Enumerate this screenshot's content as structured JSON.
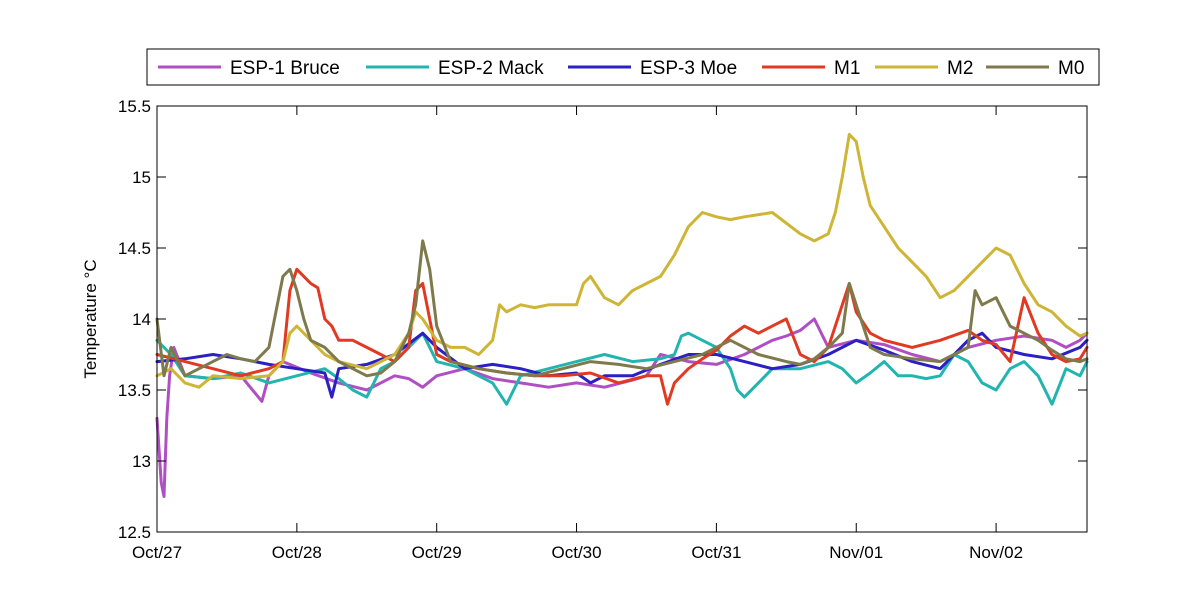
{
  "chart_data": {
    "type": "line",
    "title": "",
    "xlabel": "",
    "ylabel": "Temperature °C",
    "ylim": [
      12.5,
      15.5
    ],
    "xlim": [
      0,
      6.65
    ],
    "grid": false,
    "legend_placement": "top",
    "x_tick_labels": [
      "Oct/27",
      "Oct/28",
      "Oct/29",
      "Oct/30",
      "Oct/31",
      "Nov/01",
      "Nov/02"
    ],
    "x_tick_values": [
      0,
      1,
      2,
      3,
      4,
      5,
      6
    ],
    "y_tick_labels": [
      "12.5",
      "13",
      "13.5",
      "14",
      "14.5",
      "15",
      "15.5"
    ],
    "y_tick_values": [
      12.5,
      13,
      13.5,
      14,
      14.5,
      15,
      15.5
    ],
    "series": [
      {
        "name": "ESP-1 Bruce",
        "color": "#b04fc4",
        "x": [
          0,
          0.03,
          0.05,
          0.07,
          0.09,
          0.12,
          0.2,
          0.4,
          0.6,
          0.75,
          0.8,
          0.9,
          1.1,
          1.3,
          1.5,
          1.7,
          1.8,
          1.9,
          2.0,
          2.2,
          2.4,
          2.6,
          2.8,
          3.0,
          3.2,
          3.4,
          3.5,
          3.6,
          3.8,
          4.0,
          4.2,
          4.4,
          4.5,
          4.6,
          4.7,
          4.8,
          5.0,
          5.2,
          5.4,
          5.6,
          5.8,
          6.0,
          6.2,
          6.4,
          6.5,
          6.6,
          6.65
        ],
        "y": [
          13.3,
          12.85,
          12.75,
          13.3,
          13.6,
          13.8,
          13.6,
          13.58,
          13.6,
          13.42,
          13.6,
          13.7,
          13.62,
          13.55,
          13.5,
          13.6,
          13.58,
          13.52,
          13.6,
          13.65,
          13.58,
          13.55,
          13.52,
          13.55,
          13.52,
          13.57,
          13.6,
          13.75,
          13.7,
          13.68,
          13.75,
          13.85,
          13.88,
          13.92,
          14.0,
          13.8,
          13.85,
          13.82,
          13.75,
          13.7,
          13.8,
          13.85,
          13.88,
          13.85,
          13.8,
          13.85,
          13.9
        ]
      },
      {
        "name": "ESP-2 Mack",
        "color": "#22b5b0",
        "x": [
          0,
          0.1,
          0.2,
          0.4,
          0.6,
          0.8,
          1.0,
          1.2,
          1.3,
          1.4,
          1.5,
          1.6,
          1.7,
          1.8,
          1.9,
          2.0,
          2.2,
          2.4,
          2.5,
          2.6,
          2.8,
          3.0,
          3.2,
          3.4,
          3.6,
          3.7,
          3.75,
          3.8,
          3.9,
          4.0,
          4.1,
          4.15,
          4.2,
          4.3,
          4.4,
          4.6,
          4.8,
          4.9,
          5.0,
          5.1,
          5.2,
          5.3,
          5.4,
          5.5,
          5.6,
          5.7,
          5.8,
          5.9,
          6.0,
          6.1,
          6.2,
          6.3,
          6.4,
          6.5,
          6.6,
          6.65
        ],
        "y": [
          13.85,
          13.75,
          13.6,
          13.58,
          13.62,
          13.55,
          13.6,
          13.65,
          13.58,
          13.5,
          13.45,
          13.65,
          13.7,
          13.8,
          13.9,
          13.7,
          13.65,
          13.55,
          13.4,
          13.6,
          13.65,
          13.7,
          13.75,
          13.7,
          13.72,
          13.75,
          13.88,
          13.9,
          13.85,
          13.8,
          13.65,
          13.5,
          13.45,
          13.55,
          13.65,
          13.65,
          13.7,
          13.65,
          13.55,
          13.62,
          13.7,
          13.6,
          13.6,
          13.58,
          13.6,
          13.75,
          13.7,
          13.55,
          13.5,
          13.65,
          13.7,
          13.6,
          13.4,
          13.65,
          13.6,
          13.7
        ]
      },
      {
        "name": "ESP-3 Moe",
        "color": "#2c1fc4",
        "x": [
          0,
          0.2,
          0.4,
          0.6,
          0.8,
          1.0,
          1.2,
          1.25,
          1.3,
          1.5,
          1.7,
          1.9,
          2.0,
          2.2,
          2.4,
          2.6,
          2.8,
          3.0,
          3.1,
          3.2,
          3.4,
          3.6,
          3.8,
          4.0,
          4.2,
          4.4,
          4.6,
          4.8,
          5.0,
          5.2,
          5.4,
          5.6,
          5.8,
          5.9,
          6.0,
          6.2,
          6.4,
          6.6,
          6.65
        ],
        "y": [
          13.7,
          13.72,
          13.75,
          13.72,
          13.68,
          13.65,
          13.62,
          13.45,
          13.65,
          13.68,
          13.75,
          13.9,
          13.8,
          13.65,
          13.68,
          13.65,
          13.6,
          13.62,
          13.55,
          13.6,
          13.6,
          13.68,
          13.75,
          13.75,
          13.7,
          13.65,
          13.68,
          13.75,
          13.85,
          13.78,
          13.7,
          13.65,
          13.85,
          13.9,
          13.8,
          13.75,
          13.72,
          13.8,
          13.85
        ]
      },
      {
        "name": "M1",
        "color": "#e03a22",
        "x": [
          0,
          0.2,
          0.4,
          0.6,
          0.8,
          0.9,
          0.95,
          1.0,
          1.05,
          1.1,
          1.15,
          1.2,
          1.25,
          1.3,
          1.4,
          1.5,
          1.6,
          1.7,
          1.8,
          1.85,
          1.9,
          1.95,
          2.0,
          2.1,
          2.3,
          2.5,
          2.7,
          2.9,
          3.1,
          3.3,
          3.5,
          3.6,
          3.65,
          3.7,
          3.8,
          3.9,
          4.0,
          4.1,
          4.2,
          4.3,
          4.4,
          4.5,
          4.6,
          4.7,
          4.8,
          4.9,
          4.95,
          5.0,
          5.1,
          5.2,
          5.4,
          5.6,
          5.8,
          5.9,
          6.0,
          6.1,
          6.2,
          6.3,
          6.4,
          6.5,
          6.6,
          6.65
        ],
        "y": [
          13.75,
          13.7,
          13.65,
          13.6,
          13.65,
          13.7,
          14.2,
          14.35,
          14.3,
          14.25,
          14.22,
          14.0,
          13.95,
          13.85,
          13.85,
          13.8,
          13.75,
          13.7,
          13.8,
          14.2,
          14.25,
          14.0,
          13.75,
          13.7,
          13.65,
          13.62,
          13.6,
          13.6,
          13.62,
          13.55,
          13.6,
          13.6,
          13.4,
          13.55,
          13.65,
          13.72,
          13.78,
          13.88,
          13.95,
          13.9,
          13.95,
          14.0,
          13.75,
          13.7,
          13.8,
          14.1,
          14.25,
          14.05,
          13.9,
          13.85,
          13.8,
          13.85,
          13.92,
          13.85,
          13.82,
          13.7,
          14.15,
          13.9,
          13.75,
          13.7,
          13.72,
          13.8
        ]
      },
      {
        "name": "M2",
        "color": "#cfb536",
        "x": [
          0,
          0.1,
          0.2,
          0.3,
          0.4,
          0.6,
          0.8,
          0.9,
          0.95,
          1.0,
          1.1,
          1.2,
          1.3,
          1.5,
          1.6,
          1.7,
          1.8,
          1.85,
          1.9,
          2.0,
          2.1,
          2.2,
          2.3,
          2.4,
          2.45,
          2.5,
          2.6,
          2.7,
          2.8,
          3.0,
          3.05,
          3.1,
          3.2,
          3.3,
          3.4,
          3.5,
          3.6,
          3.7,
          3.8,
          3.9,
          4.0,
          4.1,
          4.2,
          4.4,
          4.6,
          4.7,
          4.8,
          4.85,
          4.9,
          4.95,
          5.0,
          5.05,
          5.1,
          5.2,
          5.3,
          5.4,
          5.5,
          5.6,
          5.7,
          5.8,
          5.9,
          6.0,
          6.1,
          6.2,
          6.3,
          6.4,
          6.5,
          6.6,
          6.65
        ],
        "y": [
          13.6,
          13.65,
          13.55,
          13.52,
          13.6,
          13.58,
          13.6,
          13.7,
          13.9,
          13.95,
          13.85,
          13.75,
          13.7,
          13.65,
          13.7,
          13.75,
          13.9,
          14.05,
          14.0,
          13.85,
          13.8,
          13.8,
          13.75,
          13.85,
          14.1,
          14.05,
          14.1,
          14.08,
          14.1,
          14.1,
          14.25,
          14.3,
          14.15,
          14.1,
          14.2,
          14.25,
          14.3,
          14.45,
          14.65,
          14.75,
          14.72,
          14.7,
          14.72,
          14.75,
          14.6,
          14.55,
          14.6,
          14.75,
          15.0,
          15.3,
          15.25,
          15.0,
          14.8,
          14.65,
          14.5,
          14.4,
          14.3,
          14.15,
          14.2,
          14.3,
          14.4,
          14.5,
          14.45,
          14.25,
          14.1,
          14.05,
          13.95,
          13.88,
          13.9
        ]
      },
      {
        "name": "M0",
        "color": "#7e7a4c",
        "x": [
          0,
          0.05,
          0.1,
          0.15,
          0.2,
          0.3,
          0.4,
          0.5,
          0.6,
          0.7,
          0.8,
          0.85,
          0.9,
          0.95,
          1.0,
          1.05,
          1.1,
          1.2,
          1.3,
          1.4,
          1.5,
          1.6,
          1.7,
          1.8,
          1.85,
          1.9,
          1.95,
          2.0,
          2.1,
          2.3,
          2.5,
          2.7,
          2.9,
          3.1,
          3.3,
          3.5,
          3.7,
          3.9,
          4.1,
          4.3,
          4.5,
          4.6,
          4.7,
          4.8,
          4.9,
          4.95,
          5.0,
          5.1,
          5.2,
          5.4,
          5.6,
          5.7,
          5.8,
          5.85,
          5.9,
          6.0,
          6.1,
          6.2,
          6.3,
          6.4,
          6.5,
          6.6,
          6.65
        ],
        "y": [
          14.0,
          13.6,
          13.8,
          13.7,
          13.6,
          13.65,
          13.7,
          13.75,
          13.72,
          13.7,
          13.8,
          14.05,
          14.3,
          14.35,
          14.2,
          14.0,
          13.85,
          13.8,
          13.7,
          13.65,
          13.6,
          13.62,
          13.7,
          13.9,
          14.1,
          14.55,
          14.35,
          13.95,
          13.7,
          13.65,
          13.62,
          13.6,
          13.65,
          13.7,
          13.68,
          13.65,
          13.7,
          13.75,
          13.85,
          13.75,
          13.7,
          13.68,
          13.72,
          13.8,
          13.9,
          14.25,
          14.1,
          13.8,
          13.75,
          13.72,
          13.7,
          13.75,
          13.8,
          14.2,
          14.1,
          14.15,
          13.95,
          13.9,
          13.85,
          13.78,
          13.72,
          13.7,
          13.72
        ]
      }
    ]
  }
}
